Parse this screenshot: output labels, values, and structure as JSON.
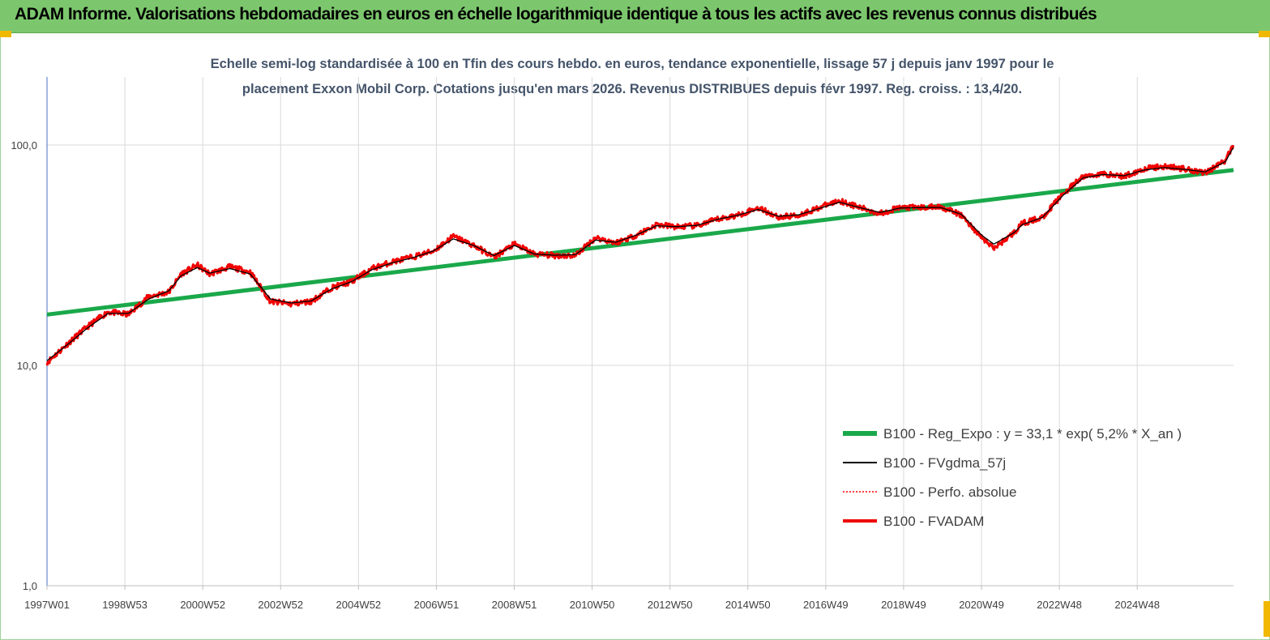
{
  "header": {
    "title": "ADAM Informe. Valorisations hebdomadaires en euros en échelle logarithmique identique à tous les actifs avec les revenus connus distribués"
  },
  "colors": {
    "header_bg": "#7cc76d",
    "accent": "#f0b800",
    "regression": "#1aa84a",
    "fvgdma": "#000000",
    "perfo": "#ff0000",
    "fvadam": "#ee0000"
  },
  "chart_data": {
    "type": "line",
    "title_line1": "Echelle semi-log standardisée à 100 en Tfin des cours hebdo. en euros, tendance exponentielle, lissage 57 j depuis janv 1997 pour le",
    "title_line2": "placement Exxon Mobil Corp. Cotations jusqu'en mars 2026. Revenus DISTRIBUES depuis févr 1997. Reg. croiss. : 13,4/20.",
    "y_scale": "log",
    "ylim": [
      1,
      100
    ],
    "y_ticks": [
      "100,0",
      "10,0",
      "1,0"
    ],
    "x_ticks": [
      "1997W01",
      "1998W53",
      "2000W52",
      "2002W52",
      "2004W52",
      "2006W51",
      "2008W51",
      "2010W50",
      "2012W50",
      "2014W50",
      "2016W49",
      "2018W49",
      "2020W49",
      "2022W48",
      "2024W48"
    ],
    "grid": "vertical",
    "legend_position": "right",
    "legend": [
      "B100 - Reg_Expo : y = 33,1 *  exp( 5,2% *  X_an )",
      "B100 - FVgdma_57j",
      "B100 - Perfo. absolue",
      "B100 - FVADAM"
    ],
    "series": [
      {
        "name": "B100 - Reg_Expo : y = 33,1 *  exp( 5,2% *  X_an )",
        "x": [
          1997.0,
          2026.2
        ],
        "values": [
          17.0,
          77.0
        ]
      },
      {
        "name": "B100 - FVADAM",
        "x": [
          1997.0,
          1997.5,
          1998.0,
          1998.5,
          1999.0,
          1999.5,
          2000.0,
          2000.3,
          2000.7,
          2001.0,
          2001.5,
          2002.0,
          2002.5,
          2003.0,
          2003.5,
          2004.0,
          2004.5,
          2005.0,
          2005.5,
          2006.0,
          2006.5,
          2007.0,
          2007.5,
          2008.0,
          2008.5,
          2009.0,
          2009.5,
          2010.0,
          2010.5,
          2011.0,
          2011.5,
          2012.0,
          2012.5,
          2013.0,
          2013.5,
          2014.0,
          2014.5,
          2015.0,
          2015.5,
          2016.0,
          2016.5,
          2017.0,
          2017.5,
          2018.0,
          2018.5,
          2019.0,
          2019.5,
          2020.0,
          2020.3,
          2020.8,
          2021.0,
          2021.5,
          2022.0,
          2022.5,
          2023.0,
          2023.5,
          2024.0,
          2024.5,
          2025.0,
          2025.5,
          2026.0,
          2026.2
        ],
        "values": [
          10.3,
          12.5,
          15.0,
          17.5,
          17.0,
          20.5,
          21.5,
          26.0,
          28.5,
          26.0,
          28.0,
          26.5,
          19.5,
          19.0,
          19.5,
          22.5,
          24.0,
          27.5,
          29.5,
          31.0,
          33.0,
          38.5,
          35.0,
          31.0,
          35.5,
          32.0,
          31.5,
          31.5,
          38.0,
          36.0,
          39.0,
          43.5,
          42.5,
          43.0,
          46.0,
          48.0,
          52.0,
          47.0,
          48.0,
          52.0,
          56.0,
          52.0,
          49.0,
          52.0,
          52.0,
          52.5,
          48.0,
          38.0,
          34.0,
          40.0,
          44.0,
          47.0,
          60.0,
          72.0,
          74.0,
          72.0,
          78.0,
          80.0,
          78.0,
          75.0,
          85.0,
          100.0
        ]
      },
      {
        "name": "B100 - FVgdma_57j",
        "x": [
          1997.0,
          1997.5,
          1998.0,
          1998.5,
          1999.0,
          1999.5,
          2000.0,
          2000.3,
          2000.7,
          2001.0,
          2001.5,
          2002.0,
          2002.5,
          2003.0,
          2003.5,
          2004.0,
          2004.5,
          2005.0,
          2005.5,
          2006.0,
          2006.5,
          2007.0,
          2007.5,
          2008.0,
          2008.5,
          2009.0,
          2009.5,
          2010.0,
          2010.5,
          2011.0,
          2011.5,
          2012.0,
          2012.5,
          2013.0,
          2013.5,
          2014.0,
          2014.5,
          2015.0,
          2015.5,
          2016.0,
          2016.5,
          2017.0,
          2017.5,
          2018.0,
          2018.5,
          2019.0,
          2019.5,
          2020.0,
          2020.3,
          2020.8,
          2021.0,
          2021.5,
          2022.0,
          2022.5,
          2023.0,
          2023.5,
          2024.0,
          2024.5,
          2025.0,
          2025.5,
          2026.0,
          2026.2
        ],
        "values": [
          10.5,
          12.4,
          14.8,
          17.2,
          17.2,
          20.0,
          21.8,
          25.5,
          27.8,
          26.2,
          27.5,
          26.0,
          20.0,
          19.2,
          19.6,
          22.2,
          24.0,
          27.2,
          29.2,
          30.8,
          33.0,
          37.5,
          35.0,
          31.5,
          35.0,
          32.0,
          31.6,
          31.8,
          37.0,
          36.2,
          39.0,
          43.0,
          42.6,
          43.2,
          46.0,
          48.0,
          51.0,
          47.5,
          48.2,
          51.5,
          55.0,
          52.0,
          49.4,
          51.8,
          52.0,
          52.0,
          48.5,
          39.0,
          35.5,
          40.0,
          43.5,
          47.0,
          59.0,
          71.0,
          73.5,
          72.5,
          77.0,
          79.0,
          77.5,
          75.5,
          84.0,
          98.0
        ]
      },
      {
        "name": "B100 - Perfo. absolue",
        "x": [
          1997.0,
          2026.2
        ],
        "values": [
          10.3,
          100.0
        ]
      }
    ]
  }
}
